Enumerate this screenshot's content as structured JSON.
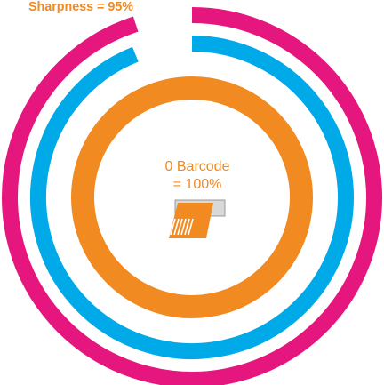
{
  "chart_data": {
    "type": "radial",
    "ylim": [
      0,
      100
    ],
    "series": [
      {
        "name": "Sharpness = 95%",
        "color": "#e5177e",
        "values": [
          95
        ]
      },
      {
        "color": "#00a9e8",
        "values": [
          94
        ]
      },
      {
        "name": [
          "0 Barcode",
          "= 100%"
        ],
        "color": "#f18a21",
        "values": [
          100
        ]
      }
    ]
  }
}
